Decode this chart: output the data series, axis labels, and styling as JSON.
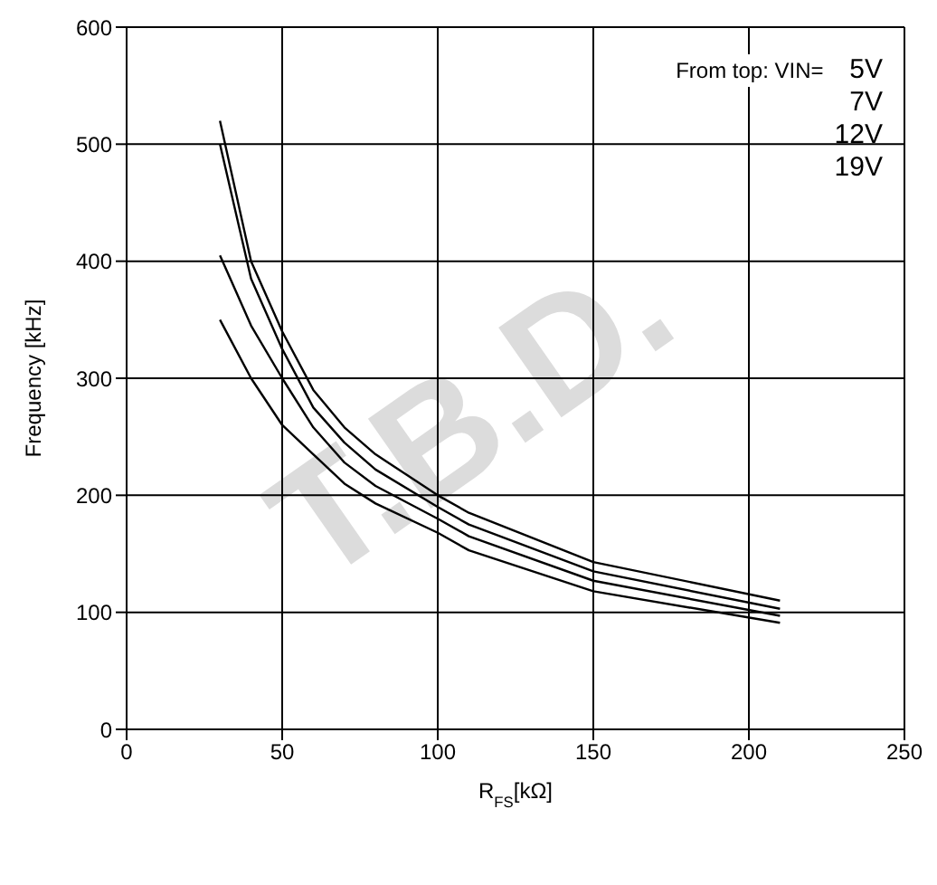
{
  "chart_data": {
    "type": "line",
    "xlabel": "R$_{FS}$[kΩ]",
    "ylabel": "Frequency [kHz]",
    "legend_title": "From top: VIN=",
    "legend": "top right",
    "grid": true,
    "marker": "none",
    "line_style": "solid",
    "x": [
      30,
      40,
      50,
      60,
      70,
      80,
      100,
      110,
      150,
      210
    ],
    "series": [
      {
        "name": "5V",
        "color": "#000000",
        "values": [
          520,
          400,
          340,
          290,
          258,
          235,
          200,
          185,
          143,
          110
        ]
      },
      {
        "name": "7V",
        "color": "#000000",
        "values": [
          500,
          385,
          325,
          275,
          245,
          222,
          190,
          175,
          135,
          103
        ]
      },
      {
        "name": "12V",
        "color": "#000000",
        "values": [
          405,
          345,
          300,
          258,
          228,
          208,
          180,
          165,
          127,
          97
        ]
      },
      {
        "name": "19V",
        "color": "#000000",
        "values": [
          350,
          300,
          260,
          235,
          210,
          193,
          168,
          153,
          118,
          91
        ]
      }
    ],
    "xlim": [
      0,
      250
    ],
    "xticks": [
      0,
      50,
      100,
      150,
      200,
      250
    ],
    "ylim": [
      0,
      600
    ],
    "yticks": [
      0,
      100,
      200,
      300,
      400,
      500,
      600
    ],
    "annotations": [
      "T.B.D."
    ]
  }
}
